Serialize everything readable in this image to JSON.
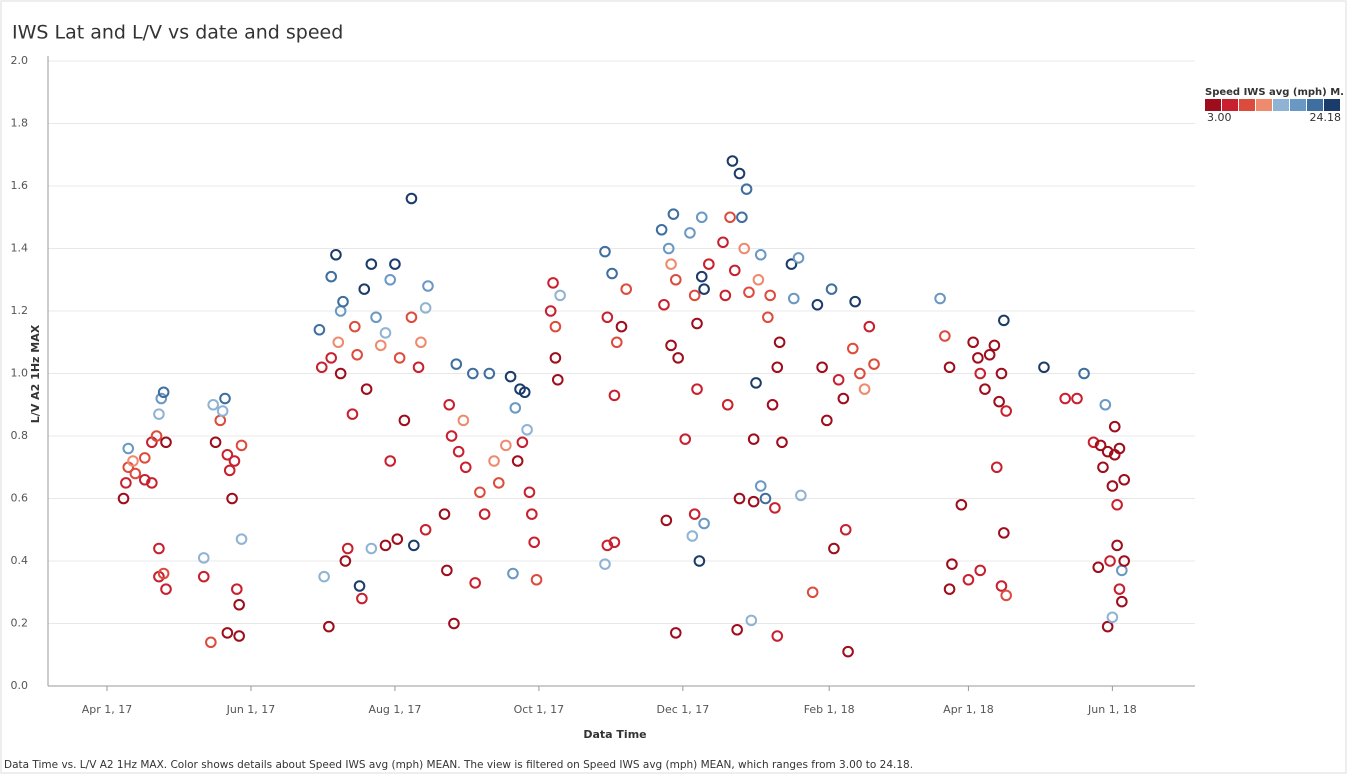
{
  "chart_data": {
    "type": "scatter",
    "title": "IWS Lat and L/V vs date and speed",
    "x_label": "Data Time",
    "y_label": "L/V A2 1Hz MAX",
    "color_label": "Speed IWS avg (mph) M.",
    "caption": "Data Time vs. L/V A2 1Hz MAX.  Color shows details about Speed IWS avg (mph) MEAN. The view is filtered on Speed IWS avg (mph) MEAN, which ranges from 3.00 to 24.18.",
    "grid": true,
    "xlim": [
      "2017-03-07",
      "2018-07-06"
    ],
    "xticks": [
      {
        "value": "2017-04-01",
        "label": "Apr 1, 17"
      },
      {
        "value": "2017-06-01",
        "label": "Jun 1, 17"
      },
      {
        "value": "2017-08-01",
        "label": "Aug 1, 17"
      },
      {
        "value": "2017-10-01",
        "label": "Oct 1, 17"
      },
      {
        "value": "2017-12-01",
        "label": "Dec 1, 17"
      },
      {
        "value": "2018-02-01",
        "label": "Feb 1, 18"
      },
      {
        "value": "2018-04-01",
        "label": "Apr 1, 18"
      },
      {
        "value": "2018-06-01",
        "label": "Jun 1, 18"
      }
    ],
    "ylim": [
      0,
      2
    ],
    "yticks": [
      {
        "value": 0,
        "label": "0.0"
      },
      0.2,
      0.4,
      0.6,
      0.8,
      {
        "value": 1,
        "label": "1.0"
      },
      1.2,
      1.4,
      1.6,
      1.8,
      {
        "value": 2,
        "label": "2.0"
      }
    ],
    "colorlim": [
      {
        "value": 3,
        "label": "3.00"
      },
      {
        "value": 24.18,
        "label": "24.18"
      }
    ],
    "color_scale": [
      "#9e0d1c",
      "#c8202e",
      "#dd4b3c",
      "#ee8a6e",
      "#8fb3d4",
      "#6a98c4",
      "#3f6ea0",
      "#1b3b6a"
    ],
    "series": [
      {
        "x": [
          "2017-04-08",
          "2017-04-09",
          "2017-04-10",
          "2017-04-10",
          "2017-04-12",
          "2017-04-13",
          "2017-04-17",
          "2017-04-17",
          "2017-04-20",
          "2017-04-22",
          "2017-04-23",
          "2017-04-24",
          "2017-04-25",
          "2017-04-26",
          "2017-04-23",
          "2017-04-23",
          "2017-04-26",
          "2017-04-25",
          "2017-04-20",
          "2017-05-12",
          "2017-05-12",
          "2017-05-15",
          "2017-05-16",
          "2017-05-17",
          "2017-05-19",
          "2017-05-20",
          "2017-05-21",
          "2017-05-22",
          "2017-05-22",
          "2017-05-23",
          "2017-05-24",
          "2017-05-25",
          "2017-05-26",
          "2017-05-27",
          "2017-05-27",
          "2017-05-28",
          "2017-05-28",
          "2017-06-30",
          "2017-07-01",
          "2017-07-02",
          "2017-07-04",
          "2017-07-05",
          "2017-07-07",
          "2017-07-05",
          "2017-07-08",
          "2017-07-09",
          "2017-07-10",
          "2017-07-09",
          "2017-07-11",
          "2017-07-12",
          "2017-07-14",
          "2017-07-15",
          "2017-07-16",
          "2017-07-17",
          "2017-07-18",
          "2017-07-19",
          "2017-07-20",
          "2017-07-22",
          "2017-07-22",
          "2017-07-24",
          "2017-07-26",
          "2017-07-28",
          "2017-07-30",
          "2017-08-08",
          "2017-08-01",
          "2017-08-02",
          "2017-08-03",
          "2017-07-28",
          "2017-07-30",
          "2017-08-05",
          "2017-08-08",
          "2017-08-09",
          "2017-08-11",
          "2017-08-12",
          "2017-08-14",
          "2017-08-15",
          "2017-08-14",
          "2017-08-22",
          "2017-08-24",
          "2017-08-25",
          "2017-08-23",
          "2017-08-26",
          "2017-08-27",
          "2017-08-28",
          "2017-08-30",
          "2017-08-31",
          "2017-09-03",
          "2017-09-04",
          "2017-09-06",
          "2017-09-08",
          "2017-09-10",
          "2017-09-12",
          "2017-09-14",
          "2017-09-17",
          "2017-09-19",
          "2017-09-20",
          "2017-09-21",
          "2017-09-22",
          "2017-09-23",
          "2017-09-24",
          "2017-09-25",
          "2017-09-26",
          "2017-09-27",
          "2017-09-28",
          "2017-09-29",
          "2017-09-30",
          "2017-10-06",
          "2017-10-07",
          "2017-10-08",
          "2017-10-09",
          "2017-10-10",
          "2017-10-08",
          "2017-10-29",
          "2017-10-29",
          "2017-10-30",
          "2017-10-30",
          "2017-11-01",
          "2017-11-02",
          "2017-11-02",
          "2017-11-03",
          "2017-11-05",
          "2017-11-07",
          "2017-11-22",
          "2017-11-23",
          "2017-11-24",
          "2017-11-25",
          "2017-11-26",
          "2017-11-27",
          "2017-11-28",
          "2017-11-28",
          "2017-11-29",
          "2017-11-26",
          "2017-12-02",
          "2017-12-04",
          "2017-12-05",
          "2017-12-06",
          "2017-12-06",
          "2017-12-07",
          "2017-12-07",
          "2017-12-08",
          "2017-12-09",
          "2017-12-09",
          "2017-12-10",
          "2017-12-10",
          "2017-12-12",
          "2017-12-18",
          "2017-12-19",
          "2017-12-20",
          "2017-12-21",
          "2017-12-22",
          "2017-12-23",
          "2017-12-24",
          "2017-12-25",
          "2017-12-25",
          "2017-12-26",
          "2017-12-27",
          "2017-12-28",
          "2017-12-29",
          "2017-12-30",
          "2017-12-31",
          "2017-12-31",
          "2018-01-01",
          "2018-01-02",
          "2018-01-03",
          "2018-01-03",
          "2018-01-05",
          "2018-01-06",
          "2018-01-07",
          "2018-01-08",
          "2018-01-09",
          "2018-01-10",
          "2018-01-11",
          "2018-01-10",
          "2018-01-12",
          "2018-01-16",
          "2018-01-17",
          "2018-01-19",
          "2018-01-20",
          "2018-01-25",
          "2018-01-27",
          "2018-01-29",
          "2018-01-31",
          "2018-02-02",
          "2018-02-03",
          "2018-02-05",
          "2018-02-07",
          "2018-02-08",
          "2018-02-09",
          "2018-02-11",
          "2018-02-12",
          "2018-02-14",
          "2018-02-16",
          "2018-02-18",
          "2018-02-20",
          "2018-03-20",
          "2018-03-22",
          "2018-03-24",
          "2018-03-24",
          "2018-03-25",
          "2018-03-29",
          "2018-04-01",
          "2018-04-03",
          "2018-04-05",
          "2018-04-06",
          "2018-04-06",
          "2018-04-08",
          "2018-04-10",
          "2018-04-12",
          "2018-04-13",
          "2018-04-14",
          "2018-04-15",
          "2018-04-15",
          "2018-04-16",
          "2018-04-16",
          "2018-04-17",
          "2018-04-17",
          "2018-05-03",
          "2018-05-12",
          "2018-05-17",
          "2018-05-20",
          "2018-05-24",
          "2018-05-26",
          "2018-05-27",
          "2018-05-28",
          "2018-05-29",
          "2018-05-30",
          "2018-05-30",
          "2018-05-31",
          "2018-06-01",
          "2018-06-01",
          "2018-06-02",
          "2018-06-02",
          "2018-06-03",
          "2018-06-03",
          "2018-06-04",
          "2018-06-04",
          "2018-06-05",
          "2018-06-05",
          "2018-06-06",
          "2018-06-06"
        ],
        "values": [
          0.6,
          0.65,
          0.7,
          0.76,
          0.72,
          0.68,
          0.66,
          0.73,
          0.78,
          0.8,
          0.87,
          0.92,
          0.94,
          0.78,
          0.44,
          0.35,
          0.31,
          0.36,
          0.65,
          0.35,
          0.41,
          0.14,
          0.9,
          0.78,
          0.85,
          0.88,
          0.92,
          0.17,
          0.74,
          0.69,
          0.6,
          0.72,
          0.31,
          0.16,
          0.26,
          0.47,
          0.77,
          1.14,
          1.02,
          0.35,
          0.19,
          1.31,
          1.38,
          1.05,
          1.1,
          1.2,
          1.23,
          1.0,
          0.4,
          0.44,
          0.87,
          1.15,
          1.06,
          0.32,
          0.28,
          1.27,
          0.95,
          1.35,
          0.44,
          1.18,
          1.09,
          0.45,
          1.3,
          1.56,
          1.35,
          0.47,
          1.05,
          1.13,
          0.72,
          0.85,
          1.18,
          0.45,
          1.02,
          1.1,
          1.21,
          1.28,
          0.5,
          0.55,
          0.9,
          0.8,
          0.37,
          0.2,
          1.03,
          0.75,
          0.85,
          0.7,
          1.0,
          0.33,
          0.62,
          0.55,
          1.0,
          0.72,
          0.65,
          0.77,
          0.99,
          0.36,
          0.89,
          0.72,
          0.95,
          0.78,
          0.94,
          0.82,
          0.62,
          0.55,
          0.46,
          0.34,
          1.2,
          1.29,
          1.05,
          0.98,
          1.25,
          1.15,
          1.39,
          0.39,
          1.18,
          0.45,
          1.32,
          0.93,
          0.46,
          1.1,
          1.15,
          1.27,
          1.46,
          1.22,
          0.53,
          1.4,
          1.09,
          1.51,
          1.3,
          0.17,
          1.05,
          1.35,
          0.79,
          1.45,
          0.48,
          1.25,
          0.55,
          1.16,
          0.95,
          0.4,
          1.5,
          1.31,
          0.52,
          1.27,
          1.35,
          1.42,
          1.25,
          0.9,
          1.5,
          1.68,
          1.33,
          0.18,
          1.64,
          0.6,
          1.5,
          1.4,
          1.59,
          1.26,
          0.21,
          0.79,
          0.59,
          0.97,
          1.3,
          0.64,
          1.38,
          0.6,
          1.18,
          1.25,
          0.9,
          0.57,
          0.16,
          1.1,
          1.02,
          0.78,
          1.35,
          1.24,
          1.37,
          0.61,
          0.3,
          1.22,
          1.02,
          0.85,
          1.27,
          0.44,
          0.98,
          0.92,
          0.5,
          0.11,
          1.08,
          1.23,
          1.0,
          0.95,
          1.15,
          1.03,
          1.24,
          1.12,
          1.02,
          0.31,
          0.39,
          0.58,
          0.34,
          1.1,
          1.05,
          1.0,
          0.37,
          0.95,
          1.06,
          1.09,
          0.7,
          0.91,
          1.0,
          0.32,
          0.49,
          1.17,
          0.88,
          0.29,
          1.02,
          0.92,
          0.92,
          1.0,
          0.78,
          0.38,
          0.77,
          0.7,
          0.9,
          0.75,
          0.19,
          0.4,
          0.64,
          0.22,
          0.74,
          0.83,
          0.45,
          0.58,
          0.31,
          0.76,
          0.27,
          0.37,
          0.66,
          0.4
        ],
        "speed": [
          5,
          8,
          10,
          18,
          11,
          9,
          8,
          10,
          7,
          9,
          16,
          18,
          19,
          4,
          8,
          7,
          6,
          9,
          8,
          8,
          16,
          9,
          16,
          4,
          10,
          16,
          20,
          5,
          7,
          6,
          5,
          8,
          6,
          3,
          5,
          15,
          9,
          20,
          7,
          16,
          3,
          21,
          22,
          8,
          11,
          17,
          19,
          5,
          5,
          8,
          6,
          10,
          9,
          22,
          8,
          22,
          3,
          22,
          16,
          18,
          11,
          5,
          17,
          22,
          23,
          3,
          9,
          14,
          8,
          5,
          9,
          24,
          7,
          12,
          16,
          17,
          8,
          5,
          8,
          6,
          4,
          3,
          20,
          7,
          11,
          8,
          21,
          8,
          9,
          6,
          19,
          12,
          10,
          13,
          23,
          17,
          18,
          4,
          23,
          8,
          23,
          16,
          6,
          7,
          8,
          9,
          8,
          7,
          5,
          3,
          15,
          10,
          20,
          16,
          8,
          6,
          21,
          6,
          8,
          9,
          5,
          9,
          19,
          7,
          4,
          17,
          3,
          21,
          10,
          5,
          3,
          12,
          8,
          18,
          16,
          9,
          6,
          3,
          7,
          24,
          17,
          22,
          17,
          23,
          8,
          8,
          7,
          8,
          10,
          24,
          6,
          4,
          22,
          5,
          21,
          11,
          20,
          9,
          16,
          4,
          3,
          22,
          12,
          17,
          17,
          19,
          9,
          10,
          4,
          8,
          6,
          5,
          3,
          3,
          22,
          17,
          18,
          16,
          9,
          22,
          4,
          3,
          20,
          3,
          7,
          5,
          7,
          4,
          9,
          22,
          10,
          11,
          8,
          9,
          18,
          9,
          3,
          3,
          3,
          4,
          8,
          5,
          4,
          6,
          7,
          3,
          4,
          3,
          8,
          3,
          5,
          8,
          4,
          23,
          6,
          9,
          22,
          8,
          8,
          21,
          7,
          4,
          5,
          3,
          18,
          4,
          3,
          7,
          5,
          16,
          3,
          5,
          4,
          6,
          6,
          4,
          4,
          17,
          3,
          3
        ]
      }
    ]
  }
}
